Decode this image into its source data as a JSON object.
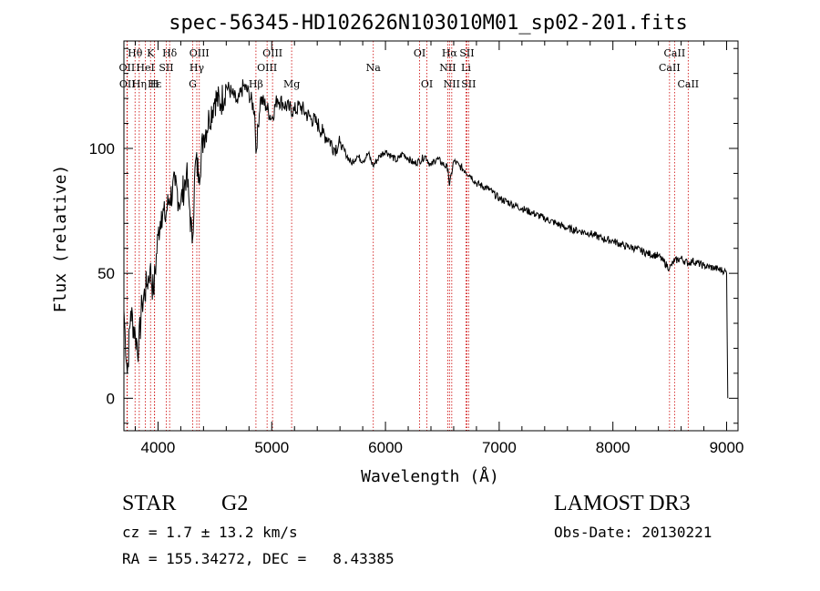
{
  "chart_data": {
    "type": "line",
    "title": "spec-56345-HD102626N103010M01_sp02-201.fits",
    "xlabel": "Wavelength (Å)",
    "ylabel": "Flux (relative)",
    "xlim": [
      3700,
      9100
    ],
    "ylim": [
      -13,
      143
    ],
    "xticks": [
      4000,
      5000,
      6000,
      7000,
      8000,
      9000
    ],
    "yticks": [
      0,
      50,
      100
    ],
    "series": [
      {
        "name": "spectrum",
        "x": [
          3700,
          3730,
          3760,
          3800,
          3830,
          3860,
          3900,
          3930,
          3960,
          4000,
          4030,
          4060,
          4100,
          4150,
          4200,
          4250,
          4280,
          4300,
          4330,
          4360,
          4400,
          4450,
          4500,
          4550,
          4600,
          4650,
          4700,
          4750,
          4800,
          4850,
          4861,
          4900,
          4950,
          5000,
          5050,
          5100,
          5150,
          5200,
          5250,
          5300,
          5350,
          5400,
          5450,
          5500,
          5550,
          5600,
          5650,
          5700,
          5750,
          5800,
          5850,
          5890,
          5950,
          6000,
          6050,
          6100,
          6150,
          6200,
          6250,
          6300,
          6350,
          6400,
          6450,
          6500,
          6550,
          6563,
          6600,
          6650,
          6700,
          6750,
          6800,
          6900,
          7000,
          7100,
          7200,
          7300,
          7400,
          7500,
          7600,
          7700,
          7800,
          7900,
          8000,
          8100,
          8200,
          8300,
          8400,
          8498,
          8542,
          8600,
          8662,
          8700,
          8800,
          8900,
          8980,
          9000,
          9010
        ],
        "values": [
          35,
          10,
          35,
          25,
          20,
          38,
          45,
          52,
          42,
          65,
          75,
          72,
          80,
          85,
          78,
          90,
          75,
          62,
          95,
          90,
          105,
          112,
          120,
          118,
          125,
          122,
          118,
          125,
          122,
          115,
          98,
          120,
          117,
          112,
          120,
          118,
          116,
          115,
          117,
          114,
          112,
          110,
          106,
          104,
          100,
          102,
          98,
          94,
          97,
          95,
          98,
          93,
          97,
          99,
          97,
          95,
          98,
          96,
          94,
          95,
          97,
          93,
          96,
          94,
          92,
          85,
          95,
          93,
          91,
          89,
          86,
          84,
          80,
          78,
          76,
          74,
          72,
          70,
          68,
          67,
          66,
          64,
          63,
          61,
          60,
          58,
          57,
          52,
          55,
          56,
          54,
          55,
          53,
          52,
          51,
          50,
          0
        ]
      }
    ],
    "lines": [
      {
        "label": "Hθ",
        "x": 3798,
        "row": 1
      },
      {
        "label": "OII",
        "x": 3727,
        "row": 2
      },
      {
        "label": "OII",
        "x": 3730,
        "row": 3
      },
      {
        "label": "Hη",
        "x": 3835,
        "row": 3
      },
      {
        "label": "K",
        "x": 3934,
        "row": 1
      },
      {
        "label": "HeI",
        "x": 3889,
        "row": 2
      },
      {
        "label": "Hε",
        "x": 3970,
        "row": 3
      },
      {
        "label": "H",
        "x": 3969,
        "row": 3
      },
      {
        "label": "SII",
        "x": 4072,
        "row": 2
      },
      {
        "label": "Hδ",
        "x": 4102,
        "row": 1
      },
      {
        "label": "OIII",
        "x": 4363,
        "row": 1
      },
      {
        "label": "Hγ",
        "x": 4341,
        "row": 2
      },
      {
        "label": "G",
        "x": 4305,
        "row": 3
      },
      {
        "label": "OIII",
        "x": 5007,
        "row": 1
      },
      {
        "label": "OIII",
        "x": 4959,
        "row": 2
      },
      {
        "label": "Hβ",
        "x": 4861,
        "row": 3
      },
      {
        "label": "Mg",
        "x": 5175,
        "row": 3
      },
      {
        "label": "Na",
        "x": 5893,
        "row": 2
      },
      {
        "label": "OI",
        "x": 6300,
        "row": 1
      },
      {
        "label": "OI",
        "x": 6364,
        "row": 3
      },
      {
        "label": "Hα",
        "x": 6563,
        "row": 1
      },
      {
        "label": "SII",
        "x": 6716,
        "row": 1
      },
      {
        "label": "NII",
        "x": 6548,
        "row": 2
      },
      {
        "label": "Li",
        "x": 6708,
        "row": 2
      },
      {
        "label": "NII",
        "x": 6583,
        "row": 3
      },
      {
        "label": "SII",
        "x": 6731,
        "row": 3
      },
      {
        "label": "CaII",
        "x": 8542,
        "row": 1
      },
      {
        "label": "CaII",
        "x": 8498,
        "row": 2
      },
      {
        "label": "CaII",
        "x": 8662,
        "row": 3
      }
    ]
  },
  "info": {
    "object_class": "STAR",
    "subclass": "G2",
    "survey": "LAMOST DR3",
    "cz": "cz = 1.7 ± 13.2 km/s",
    "obs_date": "Obs-Date: 20130221",
    "coords": "RA = 155.34272, DEC =   8.43385"
  },
  "colors": {
    "spectrum": "#000000",
    "line_markers": "#cc0000"
  }
}
